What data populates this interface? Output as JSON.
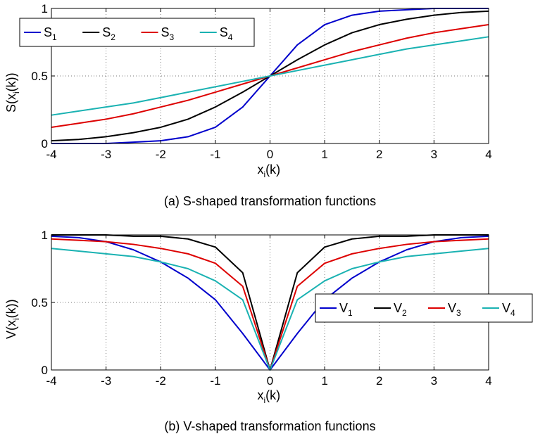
{
  "chart_data": [
    {
      "type": "line",
      "caption": "(a) S-shaped transformation functions",
      "xlabel_main": "x",
      "xlabel_sub": "i",
      "xlabel_rest": "(k)",
      "ylabel_main": "S(x",
      "ylabel_sub": "i",
      "ylabel_rest": "(k))",
      "xlim": [
        -4,
        4
      ],
      "ylim": [
        0,
        1
      ],
      "xticks": [
        "-4",
        "-3",
        "-2",
        "-1",
        "0",
        "1",
        "2",
        "3",
        "4"
      ],
      "yticks": [
        "0",
        "0.5",
        "1"
      ],
      "grid": true,
      "legend_position": "top-left",
      "x": [
        -4,
        -3.5,
        -3,
        -2.5,
        -2,
        -1.5,
        -1,
        -0.5,
        0,
        0.5,
        1,
        1.5,
        2,
        2.5,
        3,
        3.5,
        4
      ],
      "series": [
        {
          "name": "S",
          "sub": "1",
          "color": "#0000cc",
          "values": [
            0.0,
            0.0,
            0.0,
            0.01,
            0.02,
            0.05,
            0.12,
            0.27,
            0.5,
            0.73,
            0.88,
            0.95,
            0.98,
            0.99,
            1.0,
            1.0,
            1.0
          ]
        },
        {
          "name": "S",
          "sub": "2",
          "color": "#000000",
          "values": [
            0.02,
            0.03,
            0.05,
            0.08,
            0.12,
            0.18,
            0.27,
            0.38,
            0.5,
            0.62,
            0.73,
            0.82,
            0.88,
            0.92,
            0.95,
            0.97,
            0.98
          ]
        },
        {
          "name": "S",
          "sub": "3",
          "color": "#dd0000",
          "values": [
            0.12,
            0.15,
            0.18,
            0.22,
            0.27,
            0.32,
            0.38,
            0.44,
            0.5,
            0.56,
            0.62,
            0.68,
            0.73,
            0.78,
            0.82,
            0.85,
            0.88
          ]
        },
        {
          "name": "S",
          "sub": "4",
          "color": "#1ab2b2",
          "values": [
            0.21,
            0.24,
            0.27,
            0.3,
            0.34,
            0.38,
            0.42,
            0.46,
            0.5,
            0.54,
            0.58,
            0.62,
            0.66,
            0.7,
            0.73,
            0.76,
            0.79
          ]
        }
      ]
    },
    {
      "type": "line",
      "caption": "(b) V-shaped transformation functions",
      "xlabel_main": "x",
      "xlabel_sub": "i",
      "xlabel_rest": "(k)",
      "ylabel_main": "V(x",
      "ylabel_sub": "i",
      "ylabel_rest": "(k))",
      "xlim": [
        -4,
        4
      ],
      "ylim": [
        0,
        1
      ],
      "xticks": [
        "-4",
        "-3",
        "-2",
        "-1",
        "0",
        "1",
        "2",
        "3",
        "4"
      ],
      "yticks": [
        "0",
        "0.5",
        "1"
      ],
      "grid": true,
      "legend_position": "middle-right",
      "x": [
        -4,
        -3.5,
        -3,
        -2.5,
        -2,
        -1.5,
        -1,
        -0.5,
        0,
        0.5,
        1,
        1.5,
        2,
        2.5,
        3,
        3.5,
        4
      ],
      "series": [
        {
          "name": "V",
          "sub": "1",
          "color": "#0000cc",
          "values": [
            0.99,
            0.98,
            0.95,
            0.89,
            0.8,
            0.68,
            0.52,
            0.27,
            0.0,
            0.27,
            0.52,
            0.68,
            0.8,
            0.89,
            0.95,
            0.98,
            0.99
          ]
        },
        {
          "name": "V",
          "sub": "2",
          "color": "#000000",
          "values": [
            1.0,
            1.0,
            1.0,
            0.99,
            0.99,
            0.97,
            0.91,
            0.72,
            0.0,
            0.72,
            0.91,
            0.97,
            0.99,
            0.99,
            1.0,
            1.0,
            1.0
          ]
        },
        {
          "name": "V",
          "sub": "3",
          "color": "#dd0000",
          "values": [
            0.97,
            0.96,
            0.95,
            0.93,
            0.9,
            0.86,
            0.79,
            0.62,
            0.0,
            0.62,
            0.79,
            0.86,
            0.9,
            0.93,
            0.95,
            0.96,
            0.97
          ]
        },
        {
          "name": "V",
          "sub": "4",
          "color": "#1ab2b2",
          "values": [
            0.9,
            0.88,
            0.86,
            0.84,
            0.8,
            0.75,
            0.66,
            0.52,
            0.0,
            0.52,
            0.66,
            0.75,
            0.8,
            0.84,
            0.86,
            0.88,
            0.9
          ]
        }
      ]
    }
  ]
}
